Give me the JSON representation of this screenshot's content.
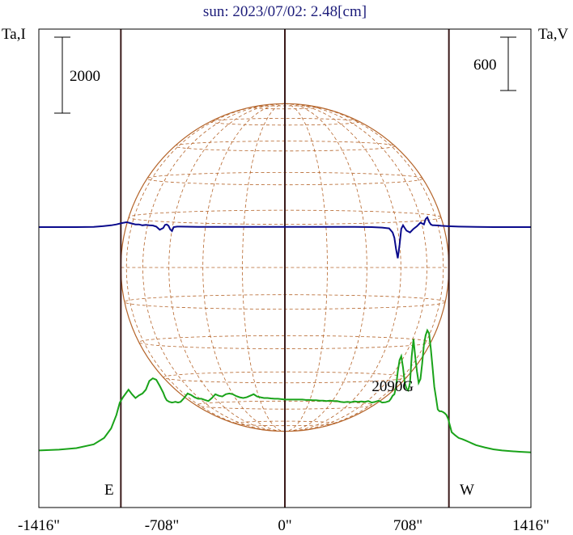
{
  "chart_data": {
    "type": "line",
    "title": "sun: 2023/07/02: 2.48[cm]",
    "title_color": "#1c1c7a",
    "left_axis_label": "Ta,I",
    "right_axis_label": "Ta,V",
    "scale_bar_left": "2000",
    "scale_bar_right": "600",
    "x_ticks": [
      {
        "value": -1416,
        "label": "-1416\""
      },
      {
        "value": -708,
        "label": "-708\""
      },
      {
        "value": 0,
        "label": "0\""
      },
      {
        "value": 708,
        "label": "708\""
      },
      {
        "value": 1416,
        "label": "1416\""
      }
    ],
    "xlim": [
      -1416,
      1416
    ],
    "limb_markers": {
      "east_label": "E",
      "west_label": "W",
      "east_x": -944,
      "west_x": 944,
      "center_x": 0
    },
    "annotation": {
      "text": "2090G",
      "x": 640
    },
    "solar_disk": {
      "radius_arcsec": 944,
      "grid_color": "#b5652b"
    },
    "colors": {
      "stokes_I": "#1aa31a",
      "stokes_V": "#0a0a8c",
      "limb_lines": "#3a1a1a",
      "frame": "#000000"
    },
    "series": [
      {
        "key": "I",
        "x": [
          -1416,
          -1300,
          -1200,
          -1100,
          -1040,
          -1000,
          -970,
          -950,
          -930,
          -900,
          -880,
          -860,
          -840,
          -820,
          -800,
          -780,
          -760,
          -740,
          -720,
          -700,
          -690,
          -680,
          -665,
          -650,
          -640,
          -630,
          -615,
          -600,
          -580,
          -560,
          -540,
          -520,
          -500,
          -480,
          -460,
          -440,
          -420,
          -400,
          -380,
          -360,
          -340,
          -320,
          -300,
          -280,
          -260,
          -240,
          -220,
          -200,
          -180,
          -160,
          -140,
          -120,
          -100,
          -80,
          -60,
          -40,
          -20,
          0,
          20,
          40,
          60,
          80,
          100,
          120,
          140,
          160,
          180,
          200,
          220,
          240,
          260,
          280,
          300,
          320,
          340,
          360,
          380,
          400,
          420,
          440,
          460,
          480,
          500,
          520,
          540,
          560,
          580,
          600,
          610,
          620,
          630,
          640,
          650,
          660,
          670,
          680,
          690,
          700,
          710,
          720,
          730,
          740,
          750,
          760,
          770,
          780,
          790,
          800,
          810,
          820,
          830,
          840,
          850,
          860,
          870,
          880,
          890,
          900,
          910,
          920,
          930,
          940,
          960,
          980,
          1000,
          1020,
          1040,
          1060,
          1080,
          1100,
          1150,
          1200,
          1250,
          1300,
          1350,
          1416
        ],
        "y": [
          120,
          140,
          180,
          280,
          450,
          700,
          1050,
          1380,
          1530,
          1720,
          1600,
          1500,
          1570,
          1620,
          1720,
          1950,
          2020,
          1980,
          1820,
          1640,
          1520,
          1440,
          1400,
          1380,
          1390,
          1400,
          1380,
          1400,
          1500,
          1620,
          1580,
          1520,
          1480,
          1480,
          1450,
          1420,
          1500,
          1600,
          1560,
          1540,
          1600,
          1620,
          1600,
          1550,
          1520,
          1500,
          1520,
          1560,
          1600,
          1540,
          1520,
          1500,
          1500,
          1490,
          1480,
          1480,
          1470,
          1460,
          1460,
          1460,
          1460,
          1460,
          1460,
          1450,
          1450,
          1440,
          1440,
          1430,
          1430,
          1420,
          1430,
          1420,
          1420,
          1400,
          1390,
          1400,
          1390,
          1410,
          1400,
          1410,
          1400,
          1420,
          1380,
          1400,
          1430,
          1380,
          1390,
          1420,
          1480,
          1560,
          1600,
          1800,
          2200,
          2500,
          2600,
          2300,
          1900,
          1750,
          1700,
          1900,
          2600,
          3050,
          2600,
          2200,
          1900,
          2000,
          2400,
          2900,
          3150,
          3280,
          3200,
          2800,
          2300,
          1800,
          1500,
          1200,
          1150,
          1150,
          1130,
          1100,
          1050,
          950,
          600,
          520,
          450,
          420,
          380,
          340,
          300,
          260,
          200,
          150,
          120,
          100,
          85,
          70
        ]
      },
      {
        "key": "V",
        "x": [
          -1416,
          -1200,
          -1100,
          -1050,
          -1000,
          -970,
          -940,
          -910,
          -880,
          -860,
          -840,
          -820,
          -800,
          -780,
          -760,
          -740,
          -720,
          -700,
          -690,
          -680,
          -670,
          -660,
          -650,
          -640,
          -620,
          -600,
          -500,
          -400,
          -300,
          -200,
          -100,
          0,
          100,
          200,
          300,
          400,
          500,
          560,
          580,
          600,
          620,
          630,
          640,
          650,
          660,
          670,
          680,
          690,
          700,
          720,
          740,
          760,
          780,
          800,
          810,
          820,
          830,
          840,
          850,
          860,
          880,
          900,
          940,
          1000,
          1100,
          1200,
          1416
        ],
        "y": [
          0,
          0,
          3,
          10,
          20,
          30,
          45,
          55,
          40,
          30,
          30,
          20,
          25,
          20,
          18,
          5,
          -30,
          -10,
          25,
          30,
          15,
          -25,
          -45,
          0,
          5,
          5,
          3,
          3,
          2,
          3,
          2,
          2,
          3,
          2,
          2,
          2,
          0,
          -5,
          -10,
          -15,
          -60,
          -120,
          -250,
          -350,
          -200,
          -20,
          20,
          -10,
          -40,
          -60,
          -20,
          10,
          50,
          30,
          90,
          110,
          60,
          30,
          20,
          20,
          18,
          15,
          10,
          5,
          2,
          0,
          0
        ]
      }
    ]
  }
}
